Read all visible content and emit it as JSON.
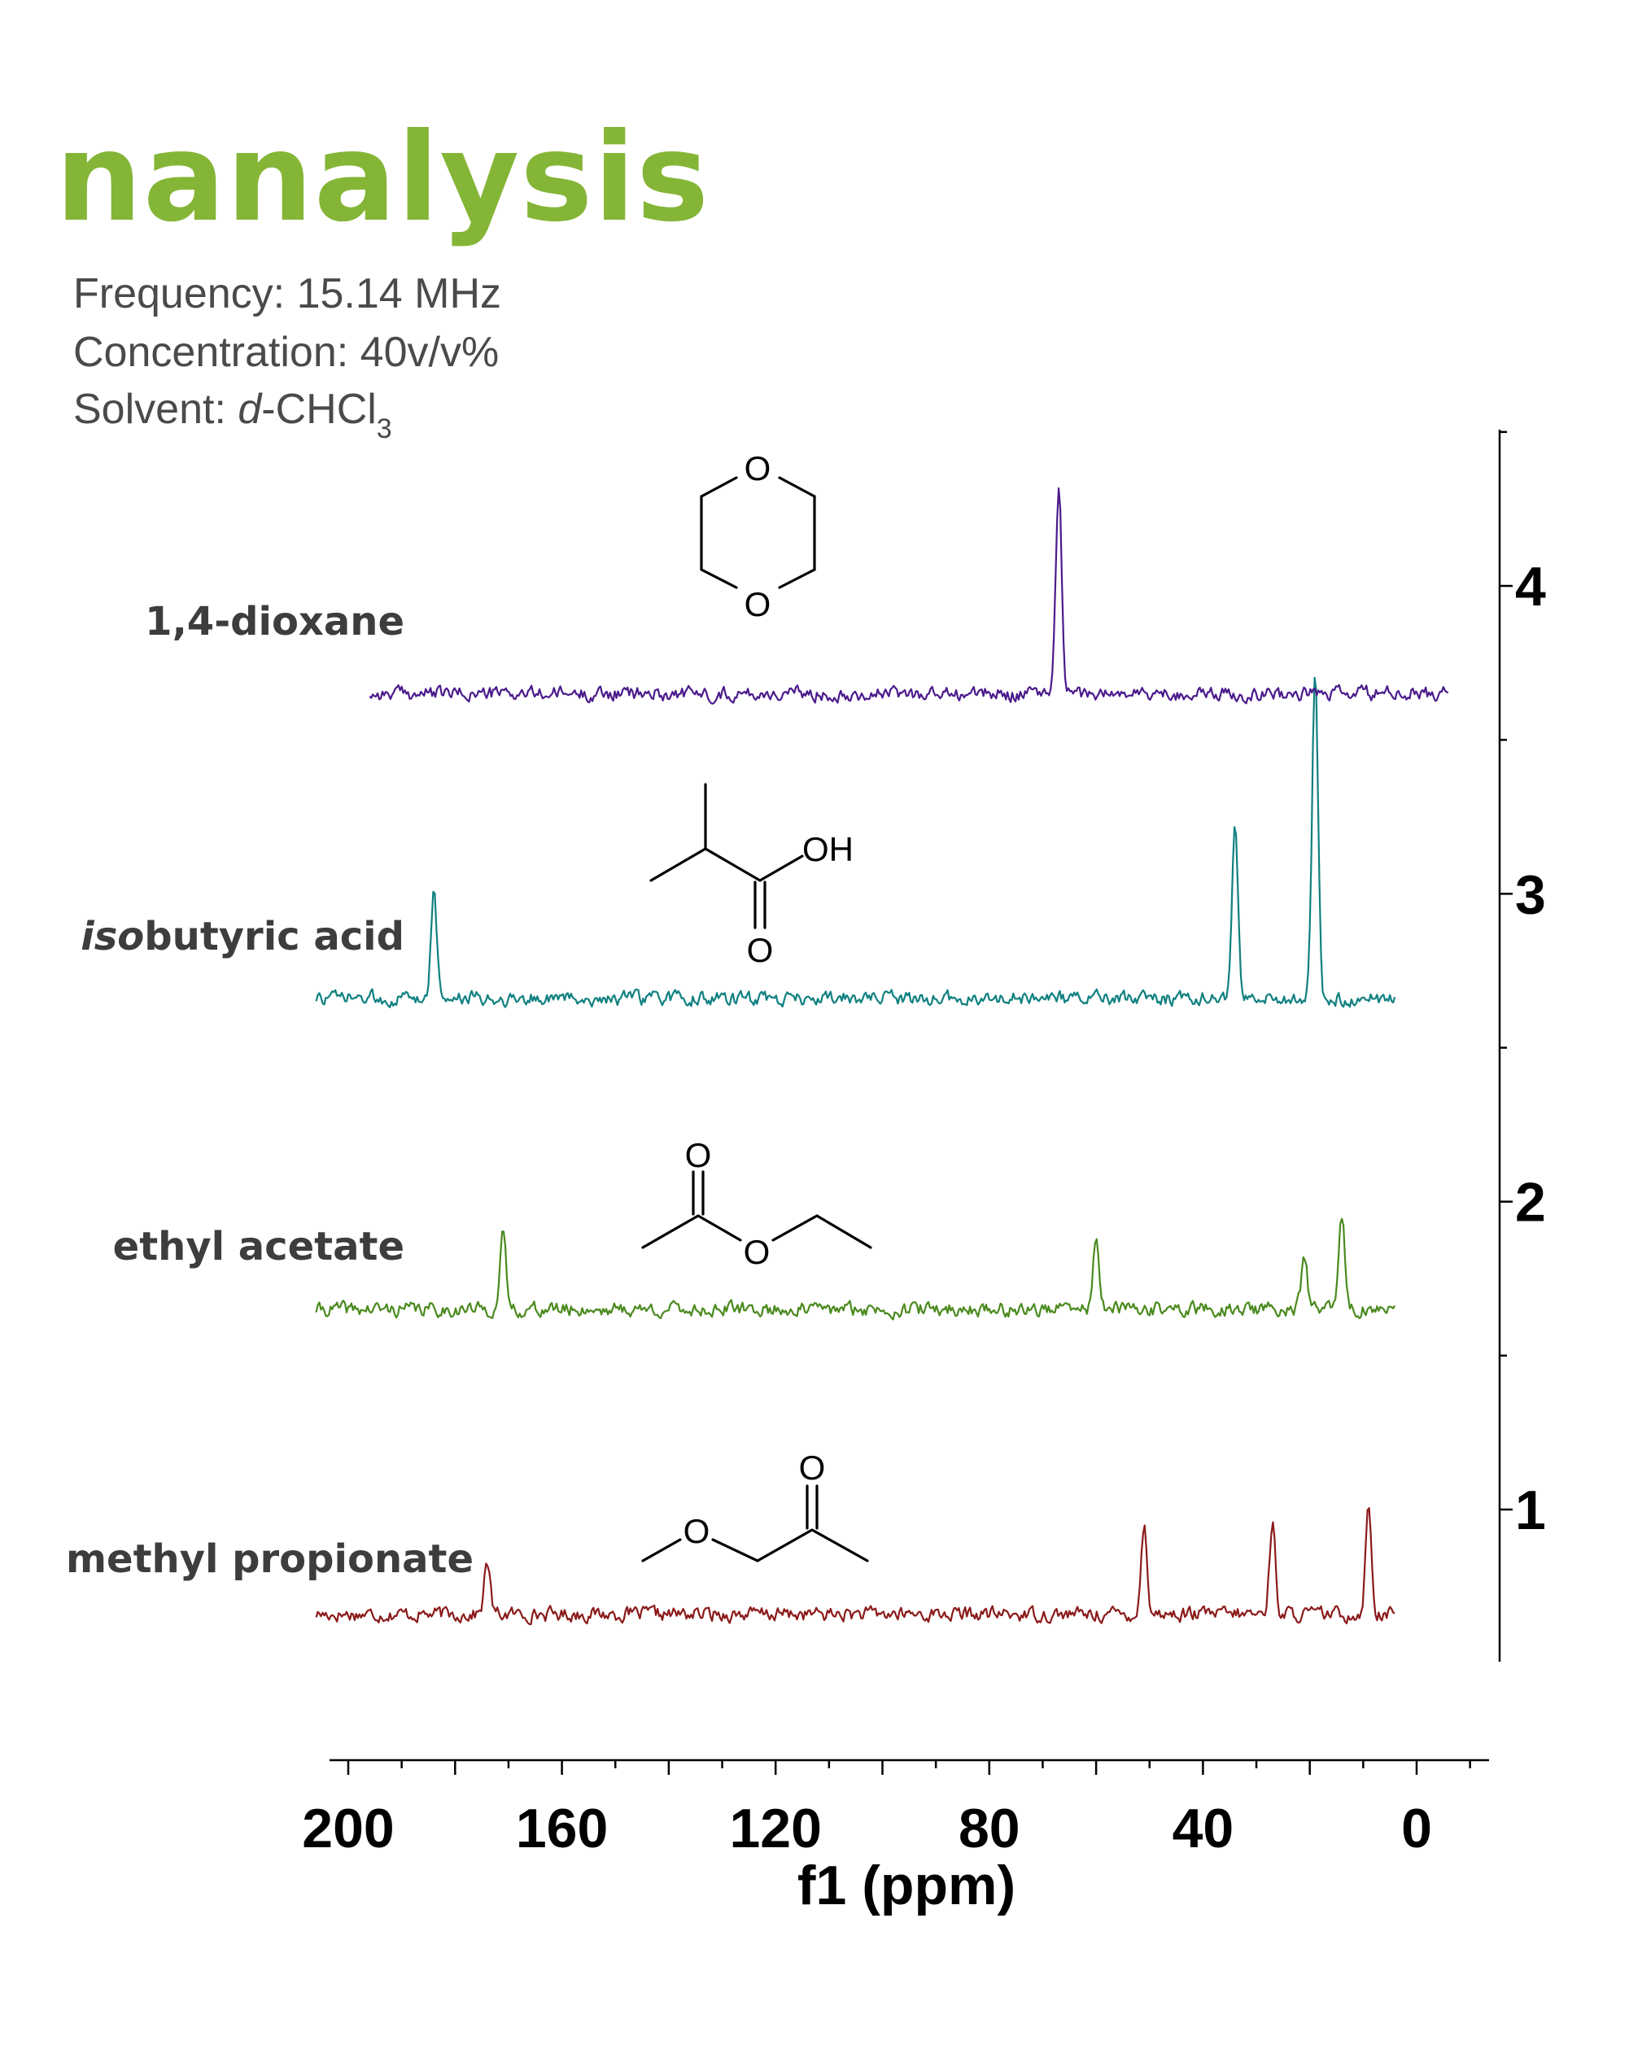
{
  "logo": {
    "text": "nanalysis",
    "color": "#85b537"
  },
  "meta": {
    "frequency": "Frequency: 15.14 MHz",
    "concentration": "Concentration: 40v/v%",
    "solvent_prefix": "Solvent: ",
    "solvent_italic": "d",
    "solvent_main": "-CHCl",
    "solvent_sub": "3"
  },
  "structures": {
    "dioxane_o_top": "O",
    "dioxane_o_bottom": "O",
    "isobutyric_oh": "OH",
    "isobutyric_o": "O",
    "ethyl_acetate_o_top": "O",
    "ethyl_acetate_o_ester": "O",
    "methyl_propionate_o_top": "O",
    "methyl_propionate_o_ester": "O"
  },
  "chart_data": {
    "type": "line",
    "xlabel": "f1 (ppm)",
    "x_reversed": true,
    "xlim": [
      206,
      -7
    ],
    "ylim": [
      0.45,
      4.5
    ],
    "x_ticks": [
      200,
      160,
      120,
      80,
      40,
      0
    ],
    "y_ticks": [
      1,
      2,
      3,
      4
    ],
    "series": [
      {
        "name": "methyl propionate",
        "label_main": "methyl propionate",
        "label_italic": "",
        "color": "#8b1a1a",
        "baseline": 0.66,
        "x_range": [
          206,
          4
        ],
        "seed": 17,
        "peaks": [
          {
            "ppm": 174.0,
            "height": 0.17
          },
          {
            "ppm": 51.0,
            "height": 0.29
          },
          {
            "ppm": 27.0,
            "height": 0.3
          },
          {
            "ppm": 9.0,
            "height": 0.35
          }
        ]
      },
      {
        "name": "ethyl acetate",
        "label_main": " ethyl acetate",
        "label_italic": "",
        "color": "#4a8a1e",
        "baseline": 1.65,
        "x_range": [
          206,
          4
        ],
        "seed": 41,
        "peaks": [
          {
            "ppm": 171.0,
            "height": 0.24
          },
          {
            "ppm": 60.0,
            "height": 0.24
          },
          {
            "ppm": 21.0,
            "height": 0.18
          },
          {
            "ppm": 14.0,
            "height": 0.3
          }
        ]
      },
      {
        "name": "isobutyric acid",
        "label_main": "butyric acid",
        "label_italic": "iso",
        "color": "#118080",
        "baseline": 2.66,
        "x_range": [
          206,
          4
        ],
        "seed": 73,
        "peaks": [
          {
            "ppm": 184.0,
            "height": 0.35
          },
          {
            "ppm": 34.0,
            "height": 0.55
          },
          {
            "ppm": 19.0,
            "height": 1.06
          }
        ]
      },
      {
        "name": "1,4-dioxane",
        "label_main": "1,4-dioxane",
        "label_italic": "",
        "color": "#4b1b8c",
        "baseline": 3.65,
        "x_range": [
          196,
          -6
        ],
        "seed": 99,
        "peaks": [
          {
            "ppm": 67.0,
            "height": 0.68
          }
        ]
      }
    ]
  }
}
